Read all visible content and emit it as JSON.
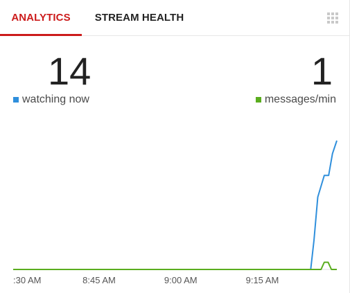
{
  "tabs": [
    {
      "label": "ANALYTICS",
      "active": true
    },
    {
      "label": "STREAM HEALTH",
      "active": false
    }
  ],
  "menu_icon": "grid-icon",
  "stats": {
    "watching_now": {
      "value": "14",
      "label": "watching now",
      "color": "#2f8fdc"
    },
    "messages_per_min": {
      "value": "1",
      "label": "messages/min",
      "color": "#5aad1e"
    }
  },
  "colors": {
    "accent": "#cc1b1b",
    "baseline": "#5aad1e",
    "viewers_line": "#2f8fdc"
  },
  "chart_data": {
    "type": "line",
    "x_tick_labels": [
      ":30 AM",
      "8:45 AM",
      "9:00 AM",
      "9:15 AM"
    ],
    "x_ticks_minutes": [
      510,
      525,
      540,
      555
    ],
    "x_range_minutes": [
      509.2,
      568.7
    ],
    "ylim": [
      0,
      20
    ],
    "series": [
      {
        "name": "watching now",
        "color": "#2f8fdc",
        "points": [
          [
            509.2,
            0
          ],
          [
            563.9,
            0
          ],
          [
            564.5,
            4
          ],
          [
            565.2,
            10
          ],
          [
            566.4,
            13
          ],
          [
            567.2,
            13
          ],
          [
            567.9,
            16
          ],
          [
            568.7,
            17.8
          ]
        ]
      },
      {
        "name": "messages/min",
        "color": "#5aad1e",
        "points": [
          [
            509.2,
            0
          ],
          [
            565.8,
            0
          ],
          [
            566.4,
            1
          ],
          [
            567.1,
            1
          ],
          [
            567.7,
            0
          ],
          [
            568.7,
            0
          ]
        ]
      }
    ]
  }
}
